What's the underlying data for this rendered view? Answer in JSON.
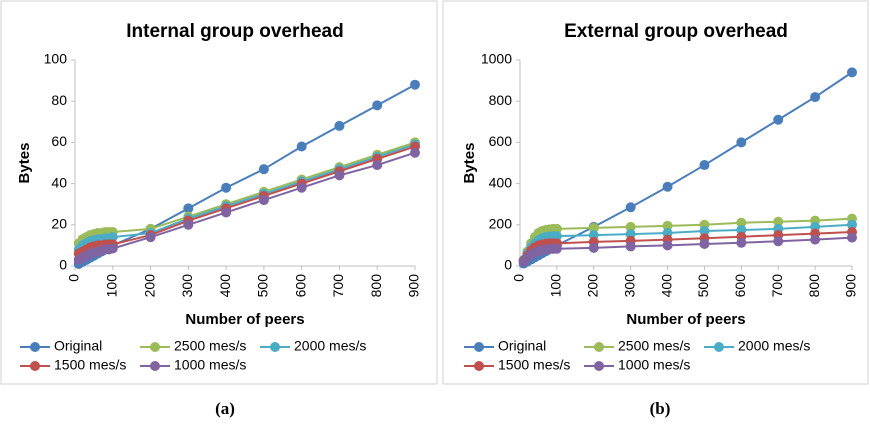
{
  "chart_data": [
    {
      "type": "line",
      "title": "Internal group overhead",
      "xlabel": "Number of peers",
      "ylabel": "Bytes",
      "x": [
        10,
        20,
        30,
        40,
        50,
        60,
        70,
        80,
        90,
        100,
        200,
        300,
        400,
        500,
        600,
        700,
        800,
        900
      ],
      "xlim": [
        0,
        900
      ],
      "xticks": [
        0,
        100,
        200,
        300,
        400,
        500,
        600,
        700,
        800,
        900
      ],
      "ylim": [
        0,
        100
      ],
      "yticks": [
        0,
        20,
        40,
        60,
        80,
        100
      ],
      "grid": false,
      "series": [
        {
          "name": "Original",
          "color": "#4a7ebb",
          "values": [
            1,
            2,
            3,
            4,
            5,
            6,
            7,
            8,
            9,
            10,
            18,
            28,
            38,
            47,
            58,
            68,
            78,
            88
          ]
        },
        {
          "name": "2500 mes/s",
          "color": "#9bbb59",
          "values": [
            11,
            13,
            14,
            15,
            15.5,
            16,
            16,
            16.5,
            16.5,
            16.5,
            18,
            24,
            30,
            36,
            42,
            48,
            54,
            60
          ]
        },
        {
          "name": "2000 mes/s",
          "color": "#4bacc6",
          "values": [
            8,
            10,
            11,
            12,
            12.5,
            13,
            13,
            13.5,
            13.5,
            14,
            16,
            23,
            29,
            35,
            41,
            47,
            53,
            59
          ]
        },
        {
          "name": "1500 mes/s",
          "color": "#c0504d",
          "values": [
            6,
            7,
            8,
            9,
            9.5,
            10,
            10,
            10.5,
            10.5,
            10.5,
            15,
            22,
            28,
            34,
            40,
            46,
            52,
            58
          ]
        },
        {
          "name": "1000 mes/s",
          "color": "#8064a2",
          "values": [
            3,
            4,
            5,
            6,
            6.5,
            7,
            7.5,
            8,
            8,
            8.5,
            14,
            20,
            26,
            32,
            38,
            44,
            49,
            55
          ]
        }
      ]
    },
    {
      "type": "line",
      "title": "External group overhead",
      "xlabel": "Number of peers",
      "ylabel": "Bytes",
      "x": [
        10,
        20,
        30,
        40,
        50,
        60,
        70,
        80,
        90,
        100,
        200,
        300,
        400,
        500,
        600,
        700,
        800,
        900
      ],
      "xlim": [
        0,
        900
      ],
      "xticks": [
        0,
        100,
        200,
        300,
        400,
        500,
        600,
        700,
        800,
        900
      ],
      "ylim": [
        0,
        1000
      ],
      "yticks": [
        0,
        200,
        400,
        600,
        800,
        1000
      ],
      "grid": false,
      "series": [
        {
          "name": "Original",
          "color": "#4a7ebb",
          "values": [
            12,
            22,
            32,
            42,
            52,
            62,
            72,
            82,
            92,
            100,
            190,
            285,
            385,
            490,
            600,
            710,
            820,
            940
          ]
        },
        {
          "name": "2500 mes/s",
          "color": "#9bbb59",
          "values": [
            30,
            70,
            110,
            140,
            160,
            170,
            175,
            178,
            180,
            180,
            185,
            190,
            195,
            200,
            210,
            215,
            220,
            230
          ]
        },
        {
          "name": "2000 mes/s",
          "color": "#4bacc6",
          "values": [
            28,
            60,
            90,
            110,
            125,
            135,
            140,
            143,
            145,
            145,
            150,
            155,
            160,
            170,
            175,
            180,
            190,
            200
          ]
        },
        {
          "name": "1500 mes/s",
          "color": "#c0504d",
          "values": [
            25,
            50,
            75,
            90,
            100,
            105,
            108,
            110,
            110,
            110,
            117,
            122,
            128,
            135,
            142,
            150,
            157,
            165
          ]
        },
        {
          "name": "1000 mes/s",
          "color": "#8064a2",
          "values": [
            20,
            40,
            55,
            65,
            72,
            77,
            80,
            82,
            83,
            84,
            88,
            95,
            100,
            107,
            113,
            120,
            128,
            138
          ]
        }
      ]
    }
  ],
  "captions": [
    "(a)",
    "(b)"
  ]
}
